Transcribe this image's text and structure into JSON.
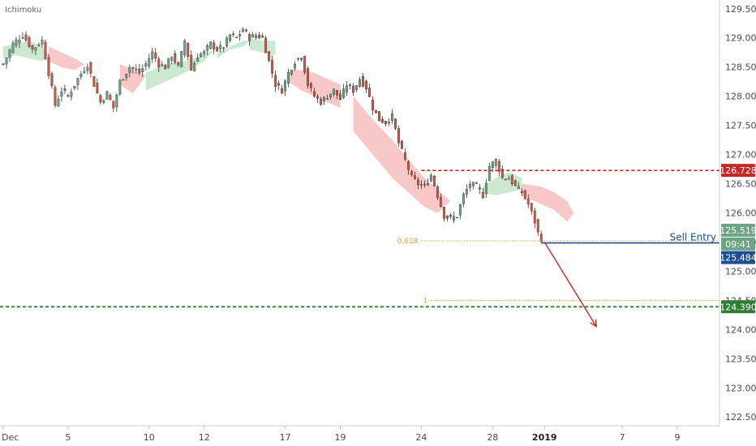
{
  "indicator_label": "Ichimoku",
  "colors": {
    "up": "#6ba583",
    "down": "#d75442",
    "wick": "#333333",
    "kumo_bull": "#b9e0c0",
    "kumo_bear": "#f6b5b5",
    "resistance": "#c62828",
    "support": "#2e7d32",
    "fib": "#e0a030",
    "entry_line": "#1f4e96",
    "arrow": "#c62828",
    "axis": "#cfcfcf"
  },
  "chart_data": {
    "type": "candlestick",
    "y_ticks": [
      "129.500",
      "129.000",
      "128.500",
      "128.000",
      "127.500",
      "127.000",
      "126.500",
      "126.000",
      "125.500",
      "125.000",
      "124.500",
      "124.000",
      "123.500",
      "123.000",
      "122.500"
    ],
    "y_range": [
      122.35,
      129.65
    ],
    "x_ticks": [
      {
        "label": "Dec",
        "bar": 0,
        "bold": false
      },
      {
        "label": "5",
        "bar": 20,
        "bold": false
      },
      {
        "label": "10",
        "bar": 45,
        "bold": false
      },
      {
        "label": "12",
        "bar": 62,
        "bold": false
      },
      {
        "label": "17",
        "bar": 87,
        "bold": false
      },
      {
        "label": "19",
        "bar": 104,
        "bold": false
      },
      {
        "label": "24",
        "bar": 129,
        "bold": false
      },
      {
        "label": "28",
        "bar": 151,
        "bold": false
      },
      {
        "label": "2019",
        "bar": 167,
        "bold": true
      },
      {
        "label": "7",
        "bar": 191,
        "bold": false
      },
      {
        "label": "9",
        "bar": 208,
        "bold": false
      }
    ],
    "x_range": [
      -1,
      221
    ],
    "close_path": [
      [
        0,
        128.55
      ],
      [
        3,
        128.9
      ],
      [
        6,
        129.05
      ],
      [
        9,
        128.8
      ],
      [
        12,
        128.95
      ],
      [
        14,
        128.4
      ],
      [
        16,
        127.85
      ],
      [
        18,
        128.1
      ],
      [
        20,
        128.0
      ],
      [
        23,
        128.3
      ],
      [
        26,
        128.55
      ],
      [
        28,
        128.2
      ],
      [
        30,
        127.9
      ],
      [
        32,
        128.05
      ],
      [
        34,
        127.8
      ],
      [
        36,
        128.25
      ],
      [
        39,
        128.5
      ],
      [
        42,
        128.4
      ],
      [
        44,
        128.55
      ],
      [
        46,
        128.75
      ],
      [
        48,
        128.55
      ],
      [
        50,
        128.5
      ],
      [
        52,
        128.7
      ],
      [
        54,
        128.5
      ],
      [
        56,
        128.95
      ],
      [
        58,
        128.45
      ],
      [
        60,
        128.7
      ],
      [
        62,
        128.75
      ],
      [
        64,
        128.9
      ],
      [
        66,
        128.8
      ],
      [
        68,
        128.85
      ],
      [
        70,
        129.05
      ],
      [
        72,
        129.0
      ],
      [
        74,
        129.15
      ],
      [
        76,
        129.0
      ],
      [
        78,
        129.05
      ],
      [
        80,
        129.0
      ],
      [
        82,
        128.6
      ],
      [
        84,
        128.2
      ],
      [
        86,
        128.1
      ],
      [
        88,
        128.4
      ],
      [
        90,
        128.6
      ],
      [
        92,
        128.7
      ],
      [
        94,
        128.2
      ],
      [
        96,
        128.0
      ],
      [
        98,
        127.9
      ],
      [
        100,
        128.0
      ],
      [
        102,
        128.1
      ],
      [
        104,
        127.95
      ],
      [
        106,
        128.2
      ],
      [
        108,
        128.1
      ],
      [
        110,
        128.3
      ],
      [
        112,
        128.15
      ],
      [
        114,
        127.8
      ],
      [
        116,
        127.6
      ],
      [
        118,
        127.55
      ],
      [
        120,
        127.65
      ],
      [
        122,
        127.2
      ],
      [
        124,
        126.9
      ],
      [
        126,
        126.6
      ],
      [
        128,
        126.5
      ],
      [
        130,
        126.45
      ],
      [
        132,
        126.65
      ],
      [
        134,
        126.3
      ],
      [
        136,
        125.95
      ],
      [
        138,
        125.9
      ],
      [
        140,
        125.95
      ],
      [
        142,
        126.3
      ],
      [
        144,
        126.5
      ],
      [
        146,
        126.45
      ],
      [
        148,
        126.3
      ],
      [
        150,
        126.8
      ],
      [
        152,
        126.9
      ],
      [
        154,
        126.6
      ],
      [
        156,
        126.6
      ],
      [
        158,
        126.45
      ],
      [
        160,
        126.35
      ],
      [
        162,
        126.15
      ],
      [
        164,
        125.85
      ],
      [
        165,
        125.65
      ],
      [
        166,
        125.56
      ]
    ],
    "ohlc_close_current": "125.519",
    "kumo": [
      {
        "kind": "bull",
        "points": [
          [
            0,
            128.85
          ],
          [
            4,
            128.9
          ],
          [
            8,
            128.95
          ],
          [
            10,
            128.9
          ],
          [
            12,
            128.85
          ],
          [
            14,
            128.7
          ],
          [
            12,
            128.6
          ],
          [
            8,
            128.65
          ],
          [
            4,
            128.7
          ],
          [
            0,
            128.65
          ]
        ]
      },
      {
        "kind": "bear",
        "points": [
          [
            14,
            128.85
          ],
          [
            18,
            128.75
          ],
          [
            22,
            128.65
          ],
          [
            25,
            128.55
          ],
          [
            22,
            128.45
          ],
          [
            18,
            128.5
          ],
          [
            14,
            128.6
          ]
        ]
      },
      {
        "kind": "bear",
        "points": [
          [
            36,
            128.55
          ],
          [
            40,
            128.45
          ],
          [
            44,
            128.35
          ],
          [
            40,
            128.05
          ],
          [
            36,
            128.2
          ]
        ]
      },
      {
        "kind": "bull",
        "points": [
          [
            44,
            128.4
          ],
          [
            50,
            128.55
          ],
          [
            56,
            128.6
          ],
          [
            62,
            128.7
          ],
          [
            66,
            128.85
          ],
          [
            62,
            128.6
          ],
          [
            56,
            128.4
          ],
          [
            50,
            128.25
          ],
          [
            44,
            128.1
          ]
        ]
      },
      {
        "kind": "bull",
        "points": [
          [
            66,
            128.75
          ],
          [
            70,
            128.85
          ],
          [
            74,
            128.95
          ],
          [
            76,
            128.95
          ],
          [
            74,
            128.85
          ],
          [
            70,
            128.8
          ],
          [
            66,
            128.65
          ]
        ]
      },
      {
        "kind": "bull",
        "points": [
          [
            76,
            129.0
          ],
          [
            80,
            128.95
          ],
          [
            84,
            128.95
          ],
          [
            84,
            128.7
          ],
          [
            80,
            128.75
          ],
          [
            76,
            128.8
          ]
        ]
      },
      {
        "kind": "bear",
        "points": [
          [
            88,
            128.45
          ],
          [
            92,
            128.45
          ],
          [
            96,
            128.4
          ],
          [
            100,
            128.3
          ],
          [
            104,
            128.2
          ],
          [
            104,
            127.8
          ],
          [
            100,
            127.9
          ],
          [
            96,
            128.0
          ],
          [
            92,
            128.1
          ],
          [
            88,
            128.25
          ]
        ]
      },
      {
        "kind": "bear",
        "points": [
          [
            108,
            128.0
          ],
          [
            114,
            127.6
          ],
          [
            120,
            127.25
          ],
          [
            126,
            126.85
          ],
          [
            130,
            126.6
          ],
          [
            134,
            126.4
          ],
          [
            138,
            126.2
          ],
          [
            134,
            126.0
          ],
          [
            130,
            126.1
          ],
          [
            126,
            126.3
          ],
          [
            120,
            126.6
          ],
          [
            114,
            127.0
          ],
          [
            108,
            127.4
          ]
        ]
      },
      {
        "kind": "bull",
        "points": [
          [
            148,
            126.45
          ],
          [
            152,
            126.6
          ],
          [
            156,
            126.7
          ],
          [
            160,
            126.6
          ],
          [
            160,
            126.4
          ],
          [
            156,
            126.35
          ],
          [
            152,
            126.3
          ],
          [
            148,
            126.35
          ]
        ]
      },
      {
        "kind": "bear",
        "points": [
          [
            160,
            126.5
          ],
          [
            166,
            126.45
          ],
          [
            170,
            126.35
          ],
          [
            174,
            126.2
          ],
          [
            176,
            126.0
          ],
          [
            174,
            125.85
          ],
          [
            170,
            126.05
          ],
          [
            166,
            126.15
          ],
          [
            160,
            126.3
          ]
        ]
      }
    ],
    "resistance": {
      "value": 126.728,
      "label": "126.728"
    },
    "support": {
      "value": 124.39,
      "label": "124.390"
    },
    "fib_levels": [
      {
        "ratio": "0.618",
        "value": 125.52,
        "from_bar": 129
      },
      {
        "ratio": "1",
        "value": 124.5,
        "from_bar": 132
      }
    ],
    "entry": {
      "label": "Sell Entry",
      "value": 125.484,
      "value_label": "125.484",
      "from_bar": 166
    },
    "current_price_label": "125.519",
    "countdown": "09:41",
    "projection_arrow": {
      "from": [
        167,
        125.5
      ],
      "to": [
        183,
        124.05
      ]
    }
  }
}
